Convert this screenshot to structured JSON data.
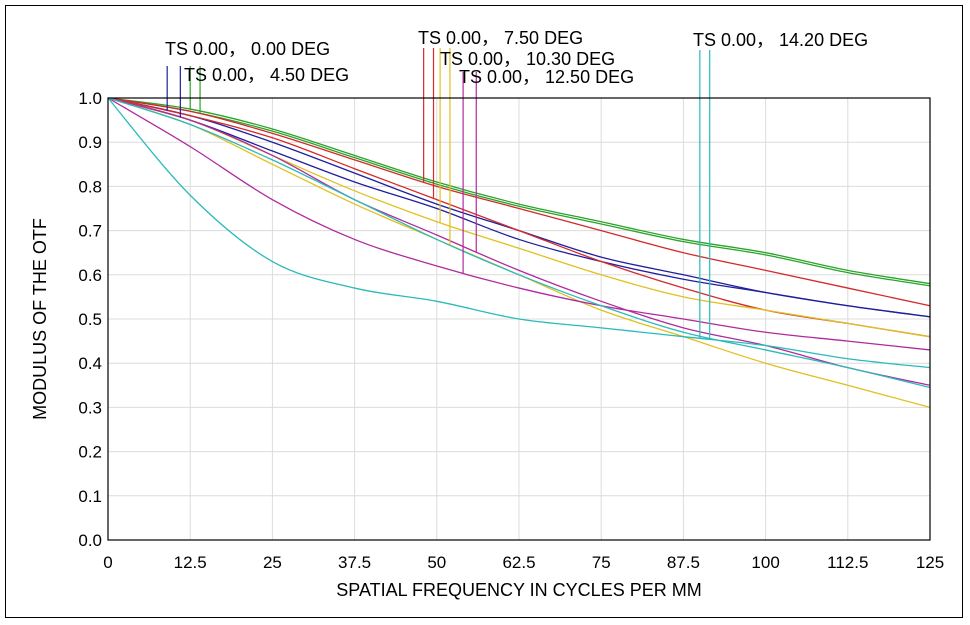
{
  "chart_data": {
    "type": "line",
    "xlabel": "SPATIAL FREQUENCY IN CYCLES PER MM",
    "ylabel": "MODULUS OF THE OTF",
    "xlim": [
      0,
      125
    ],
    "ylim": [
      0,
      1.0
    ],
    "x_ticks": [
      "0",
      "12.5",
      "25",
      "37.5",
      "50",
      "62.5",
      "75",
      "87.5",
      "100",
      "112.5",
      "125"
    ],
    "y_ticks": [
      "0.0",
      "0.1",
      "0.2",
      "0.3",
      "0.4",
      "0.5",
      "0.6",
      "0.7",
      "0.8",
      "0.9",
      "1.0"
    ],
    "grid": true,
    "legend_labels": [
      {
        "text": "TS 0.00，  0.00 DEG",
        "colors": [
          "#1f1f9e",
          "#1f1f9e"
        ],
        "marker_x": [
          9,
          11
        ]
      },
      {
        "text": "TS 0.00，  4.50 DEG",
        "colors": [
          "#2aa32a",
          "#2aa32a"
        ],
        "marker_x": [
          12.5,
          14
        ]
      },
      {
        "text": "TS 0.00，  7.50 DEG",
        "colors": [
          "#d42a2a",
          "#d42a2a"
        ],
        "marker_x": [
          48,
          49.5
        ]
      },
      {
        "text": "TS 0.00，  10.30 DEG",
        "colors": [
          "#e0c020",
          "#e0c020"
        ],
        "marker_x": [
          50.5,
          52
        ]
      },
      {
        "text": "TS 0.00，  12.50 DEG",
        "colors": [
          "#b02a9e",
          "#b02a9e"
        ],
        "marker_x": [
          54,
          56
        ]
      },
      {
        "text": "TS 0.00，  14.20 DEG",
        "colors": [
          "#2ababa",
          "#2ababa"
        ],
        "marker_x": [
          90,
          91.5
        ]
      }
    ],
    "x": [
      0,
      12.5,
      25,
      37.5,
      50,
      62.5,
      75,
      87.5,
      100,
      112.5,
      125
    ],
    "series": [
      {
        "color": "#1f1f9e",
        "values": [
          1.0,
          0.96,
          0.9,
          0.83,
          0.76,
          0.7,
          0.64,
          0.6,
          0.56,
          0.53,
          0.505
        ]
      },
      {
        "color": "#1f1f9e",
        "values": [
          1.0,
          0.95,
          0.88,
          0.81,
          0.75,
          0.68,
          0.63,
          0.59,
          0.56,
          0.53,
          0.505
        ]
      },
      {
        "color": "#2aa32a",
        "values": [
          1.0,
          0.975,
          0.93,
          0.87,
          0.81,
          0.76,
          0.72,
          0.68,
          0.65,
          0.61,
          0.58
        ]
      },
      {
        "color": "#2aa32a",
        "values": [
          1.0,
          0.97,
          0.925,
          0.865,
          0.805,
          0.755,
          0.715,
          0.675,
          0.645,
          0.605,
          0.575
        ]
      },
      {
        "color": "#d42a2a",
        "values": [
          1.0,
          0.97,
          0.92,
          0.86,
          0.8,
          0.75,
          0.7,
          0.65,
          0.61,
          0.57,
          0.53
        ]
      },
      {
        "color": "#d42a2a",
        "values": [
          1.0,
          0.96,
          0.91,
          0.84,
          0.77,
          0.7,
          0.63,
          0.57,
          0.52,
          0.49,
          0.46
        ]
      },
      {
        "color": "#e0c020",
        "values": [
          1.0,
          0.95,
          0.87,
          0.79,
          0.72,
          0.66,
          0.6,
          0.55,
          0.52,
          0.49,
          0.46
        ]
      },
      {
        "color": "#e0c020",
        "values": [
          1.0,
          0.94,
          0.85,
          0.76,
          0.68,
          0.6,
          0.52,
          0.46,
          0.4,
          0.35,
          0.3
        ]
      },
      {
        "color": "#b02a9e",
        "values": [
          1.0,
          0.89,
          0.77,
          0.68,
          0.62,
          0.57,
          0.53,
          0.5,
          0.47,
          0.45,
          0.43
        ]
      },
      {
        "color": "#b02a9e",
        "values": [
          1.0,
          0.95,
          0.87,
          0.77,
          0.69,
          0.61,
          0.54,
          0.48,
          0.44,
          0.39,
          0.35
        ]
      },
      {
        "color": "#2ababa",
        "values": [
          1.0,
          0.78,
          0.63,
          0.57,
          0.54,
          0.5,
          0.48,
          0.46,
          0.44,
          0.41,
          0.39
        ]
      },
      {
        "color": "#2ababa",
        "values": [
          1.0,
          0.94,
          0.86,
          0.77,
          0.68,
          0.6,
          0.53,
          0.47,
          0.43,
          0.39,
          0.345
        ]
      }
    ]
  }
}
